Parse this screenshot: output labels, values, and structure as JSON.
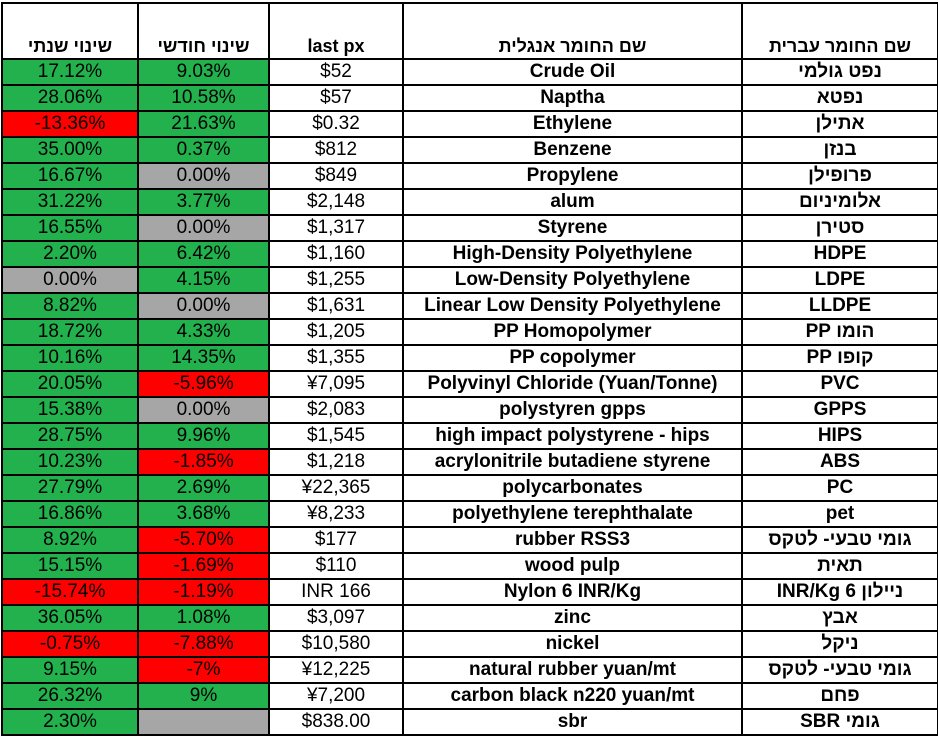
{
  "colors": {
    "green": "#22b14c",
    "red": "#ff0000",
    "gray": "#a6a6a6"
  },
  "headers": {
    "yearly_change": "שינוי שנתי",
    "monthly_change": "שינוי חודשי",
    "last_px": "last px",
    "english_name": "שם החומר אנגלית",
    "hebrew_name": "שם החומר עברית"
  },
  "rows": [
    {
      "yearly": "17.12%",
      "yearly_color": "green",
      "monthly": "9.03%",
      "monthly_color": "green",
      "price": "$52",
      "english": "Crude Oil",
      "hebrew": "נפט גולמי"
    },
    {
      "yearly": "28.06%",
      "yearly_color": "green",
      "monthly": "10.58%",
      "monthly_color": "green",
      "price": "$57",
      "english": "Naptha",
      "hebrew": "נפטא"
    },
    {
      "yearly": "-13.36%",
      "yearly_color": "red",
      "monthly": "21.63%",
      "monthly_color": "green",
      "price": "$0.32",
      "english": "Ethylene",
      "hebrew": "אתילן"
    },
    {
      "yearly": "35.00%",
      "yearly_color": "green",
      "monthly": "0.37%",
      "monthly_color": "green",
      "price": "$812",
      "english": "Benzene",
      "hebrew": "בנזן"
    },
    {
      "yearly": "16.67%",
      "yearly_color": "green",
      "monthly": "0.00%",
      "monthly_color": "gray",
      "price": "$849",
      "english": "Propylene",
      "hebrew": "פרופילן"
    },
    {
      "yearly": "31.22%",
      "yearly_color": "green",
      "monthly": "3.77%",
      "monthly_color": "green",
      "price": "$2,148",
      "english": "alum",
      "hebrew": "אלומיניום"
    },
    {
      "yearly": "16.55%",
      "yearly_color": "green",
      "monthly": "0.00%",
      "monthly_color": "gray",
      "price": "$1,317",
      "english": "Styrene",
      "hebrew": "סטירן"
    },
    {
      "yearly": "2.20%",
      "yearly_color": "green",
      "monthly": "6.42%",
      "monthly_color": "green",
      "price": "$1,160",
      "english": "High-Density Polyethylene",
      "hebrew": "HDPE"
    },
    {
      "yearly": "0.00%",
      "yearly_color": "gray",
      "monthly": "4.15%",
      "monthly_color": "green",
      "price": "$1,255",
      "english": "Low-Density Polyethylene",
      "hebrew": "LDPE"
    },
    {
      "yearly": "8.82%",
      "yearly_color": "green",
      "monthly": "0.00%",
      "monthly_color": "gray",
      "price": "$1,631",
      "english": "Linear Low Density Polyethylene",
      "hebrew": "LLDPE"
    },
    {
      "yearly": "18.72%",
      "yearly_color": "green",
      "monthly": "4.33%",
      "monthly_color": "green",
      "price": "$1,205",
      "english": "PP Homopolymer",
      "hebrew": "הומו PP"
    },
    {
      "yearly": "10.16%",
      "yearly_color": "green",
      "monthly": "14.35%",
      "monthly_color": "green",
      "price": "$1,355",
      "english": "PP copolymer",
      "hebrew": "קופו PP"
    },
    {
      "yearly": "20.05%",
      "yearly_color": "green",
      "monthly": "-5.96%",
      "monthly_color": "red",
      "price": "¥7,095",
      "english": "Polyvinyl Chloride  (Yuan/Tonne)",
      "hebrew": "PVC"
    },
    {
      "yearly": "15.38%",
      "yearly_color": "green",
      "monthly": "0.00%",
      "monthly_color": "gray",
      "price": "$2,083",
      "english": "polystyren gpps",
      "hebrew": "GPPS"
    },
    {
      "yearly": "28.75%",
      "yearly_color": "green",
      "monthly": "9.96%",
      "monthly_color": "green",
      "price": "$1,545",
      "english": "high impact polystyrene - hips",
      "hebrew": "HIPS"
    },
    {
      "yearly": "10.23%",
      "yearly_color": "green",
      "monthly": "-1.85%",
      "monthly_color": "red",
      "price": "$1,218",
      "english": "acrylonitrile butadiene styrene",
      "hebrew": "ABS"
    },
    {
      "yearly": "27.79%",
      "yearly_color": "green",
      "monthly": "2.69%",
      "monthly_color": "green",
      "price": "¥22,365",
      "english": "polycarbonates",
      "hebrew": "PC"
    },
    {
      "yearly": "16.86%",
      "yearly_color": "green",
      "monthly": "3.68%",
      "monthly_color": "green",
      "price": "¥8,233",
      "english": "polyethylene terephthalate",
      "hebrew": "pet"
    },
    {
      "yearly": "8.92%",
      "yearly_color": "green",
      "monthly": "-5.70%",
      "monthly_color": "red",
      "price": "$177",
      "english": "rubber RSS3",
      "hebrew": "גומי טבעי- לטקס"
    },
    {
      "yearly": "15.15%",
      "yearly_color": "green",
      "monthly": "-1.69%",
      "monthly_color": "red",
      "price": "$110",
      "english": "wood pulp",
      "hebrew": "תאית"
    },
    {
      "yearly": "-15.74%",
      "yearly_color": "red",
      "monthly": "-1.19%",
      "monthly_color": "red",
      "price": "INR 166",
      "english": "Nylon 6  INR/Kg",
      "hebrew": "ניילון 6 INR/Kg"
    },
    {
      "yearly": "36.05%",
      "yearly_color": "green",
      "monthly": "1.08%",
      "monthly_color": "green",
      "price": "$3,097",
      "english": "zinc",
      "hebrew": "אבץ"
    },
    {
      "yearly": "-0.75%",
      "yearly_color": "red",
      "monthly": "-7.88%",
      "monthly_color": "red",
      "price": "$10,580",
      "english": "nickel",
      "hebrew": "ניקל"
    },
    {
      "yearly": "9.15%",
      "yearly_color": "green",
      "monthly": "-7%",
      "monthly_color": "red",
      "price": "¥12,225",
      "english": "natural rubber yuan/mt",
      "hebrew": "גומי טבעי- לטקס"
    },
    {
      "yearly": "26.32%",
      "yearly_color": "green",
      "monthly": "9%",
      "monthly_color": "green",
      "price": "¥7,200",
      "english": "carbon black n220 yuan/mt",
      "hebrew": "פחם"
    },
    {
      "yearly": "2.30%",
      "yearly_color": "green",
      "monthly": "",
      "monthly_color": "gray",
      "price": "$838.00",
      "english": "sbr",
      "hebrew": "גומי SBR"
    }
  ]
}
